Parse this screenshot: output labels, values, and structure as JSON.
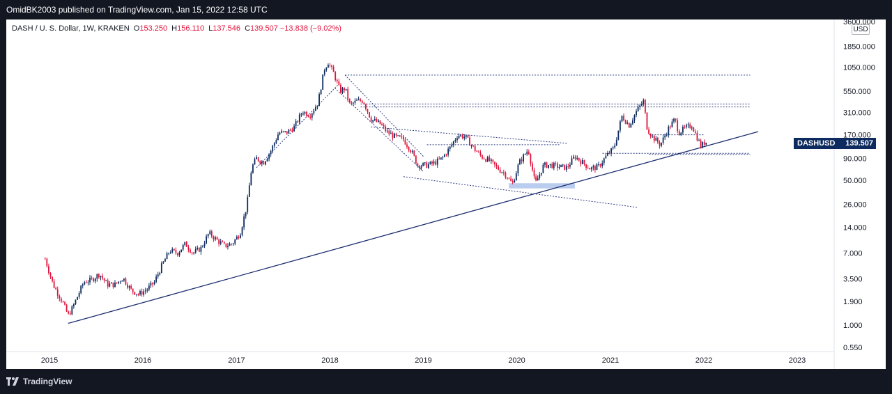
{
  "header": {
    "publisher": "OmidBK2003 published on TradingView.com, Jan 15, 2022 12:58 UTC"
  },
  "legend": {
    "symbol": "DASH / U. S. Dollar, 1W, KRAKEN",
    "o_label": "O",
    "o": "153.250",
    "h_label": "H",
    "h": "156.110",
    "l_label": "L",
    "l": "137.546",
    "c_label": "C",
    "c": "139.507",
    "change": "−13.838 (−9.02%)"
  },
  "price_tag": {
    "symbol": "DASHUSD",
    "value": "139.507"
  },
  "currency": "USD",
  "brand": "TradingView",
  "colors": {
    "up": "#0d2b5e",
    "down": "#e0143c",
    "trendline": "#1c2f6e",
    "dotted": "#2a3a80",
    "highlight": "#9cb8e8"
  },
  "chart_data": {
    "type": "candlestick",
    "y_scale": "log",
    "y_ticks": [
      "3600.000",
      "1850.000",
      "1050.000",
      "550.000",
      "310.000",
      "170.000",
      "90.000",
      "50.000",
      "26.000",
      "14.000",
      "7.000",
      "3.500",
      "1.900",
      "1.000",
      "0.550"
    ],
    "x_ticks": [
      "2015",
      "2016",
      "2017",
      "2018",
      "2019",
      "2020",
      "2021",
      "2022",
      "2023"
    ],
    "last_close": 139.507,
    "price_path": [
      [
        "2014-12-15",
        6.0
      ],
      [
        "2015-01-15",
        3.0
      ],
      [
        "2015-02-20",
        1.9
      ],
      [
        "2015-03-15",
        1.3
      ],
      [
        "2015-04-01",
        1.6
      ],
      [
        "2015-05-15",
        3.2
      ],
      [
        "2015-06-15",
        3.4
      ],
      [
        "2015-07-15",
        4.0
      ],
      [
        "2015-08-15",
        3.0
      ],
      [
        "2015-09-15",
        3.0
      ],
      [
        "2015-10-15",
        3.6
      ],
      [
        "2015-11-15",
        2.6
      ],
      [
        "2015-12-15",
        2.3
      ],
      [
        "2016-01-15",
        2.6
      ],
      [
        "2016-02-15",
        3.2
      ],
      [
        "2016-03-15",
        5.0
      ],
      [
        "2016-04-15",
        7.5
      ],
      [
        "2016-05-15",
        7.0
      ],
      [
        "2016-06-15",
        9.0
      ],
      [
        "2016-07-15",
        7.0
      ],
      [
        "2016-08-15",
        8.0
      ],
      [
        "2016-09-15",
        12.0
      ],
      [
        "2016-10-15",
        10.0
      ],
      [
        "2016-11-15",
        8.5
      ],
      [
        "2016-12-15",
        9.0
      ],
      [
        "2017-01-15",
        12.0
      ],
      [
        "2017-02-10",
        25.0
      ],
      [
        "2017-03-01",
        70.0
      ],
      [
        "2017-03-20",
        90.0
      ],
      [
        "2017-04-15",
        80.0
      ],
      [
        "2017-05-15",
        110.0
      ],
      [
        "2017-06-15",
        180.0
      ],
      [
        "2017-07-15",
        180.0
      ],
      [
        "2017-08-15",
        210.0
      ],
      [
        "2017-09-15",
        320.0
      ],
      [
        "2017-10-15",
        290.0
      ],
      [
        "2017-11-15",
        400.0
      ],
      [
        "2017-12-10",
        1000.0
      ],
      [
        "2017-12-25",
        1200.0
      ],
      [
        "2018-01-15",
        900.0
      ],
      [
        "2018-02-10",
        550.0
      ],
      [
        "2018-03-01",
        600.0
      ],
      [
        "2018-03-20",
        380.0
      ],
      [
        "2018-04-15",
        420.0
      ],
      [
        "2018-05-10",
        430.0
      ],
      [
        "2018-06-10",
        260.0
      ],
      [
        "2018-07-15",
        230.0
      ],
      [
        "2018-08-15",
        180.0
      ],
      [
        "2018-09-15",
        160.0
      ],
      [
        "2018-10-15",
        150.0
      ],
      [
        "2018-11-15",
        110.0
      ],
      [
        "2018-12-10",
        75.0
      ],
      [
        "2019-01-15",
        75.0
      ],
      [
        "2019-02-15",
        80.0
      ],
      [
        "2019-03-15",
        90.0
      ],
      [
        "2019-04-15",
        120.0
      ],
      [
        "2019-05-15",
        170.0
      ],
      [
        "2019-06-15",
        160.0
      ],
      [
        "2019-07-15",
        120.0
      ],
      [
        "2019-08-15",
        95.0
      ],
      [
        "2019-09-15",
        85.0
      ],
      [
        "2019-10-15",
        70.0
      ],
      [
        "2019-11-15",
        60.0
      ],
      [
        "2019-12-15",
        45.0
      ],
      [
        "2020-01-10",
        80.0
      ],
      [
        "2020-02-15",
        115.0
      ],
      [
        "2020-03-13",
        45.0
      ],
      [
        "2020-04-15",
        75.0
      ],
      [
        "2020-05-15",
        75.0
      ],
      [
        "2020-06-15",
        72.0
      ],
      [
        "2020-07-15",
        70.0
      ],
      [
        "2020-08-15",
        95.0
      ],
      [
        "2020-09-15",
        80.0
      ],
      [
        "2020-10-15",
        68.0
      ],
      [
        "2020-11-15",
        72.0
      ],
      [
        "2020-12-15",
        95.0
      ],
      [
        "2021-01-15",
        120.0
      ],
      [
        "2021-02-15",
        280.0
      ],
      [
        "2021-03-15",
        220.0
      ],
      [
        "2021-04-15",
        330.0
      ],
      [
        "2021-05-10",
        420.0
      ],
      [
        "2021-05-25",
        200.0
      ],
      [
        "2021-06-15",
        160.0
      ],
      [
        "2021-07-15",
        130.0
      ],
      [
        "2021-08-15",
        200.0
      ],
      [
        "2021-09-10",
        260.0
      ],
      [
        "2021-09-25",
        180.0
      ],
      [
        "2021-10-15",
        200.0
      ],
      [
        "2021-11-15",
        220.0
      ],
      [
        "2021-12-05",
        160.0
      ],
      [
        "2021-12-20",
        125.0
      ],
      [
        "2022-01-05",
        140.0
      ],
      [
        "2022-01-15",
        139.507
      ]
    ],
    "annotations": {
      "support_trendline": [
        [
          "2015-03-15",
          1.05
        ],
        [
          "2022-08-01",
          185.0
        ]
      ],
      "dotted_lines": [
        [
          [
            "2017-03-20",
            70.0
          ],
          [
            "2018-02-01",
            650.0
          ]
        ],
        [
          [
            "2018-01-20",
            600.0
          ],
          [
            "2019-01-01",
            63.0
          ]
        ],
        [
          [
            "2018-03-01",
            850.0
          ],
          [
            "2019-01-01",
            95.0
          ]
        ],
        [
          [
            "2018-06-10",
            210.0
          ],
          [
            "2020-07-15",
            135.0
          ]
        ],
        [
          [
            "2018-10-15",
            55.0
          ],
          [
            "2021-04-15",
            24.0
          ]
        ],
        [
          [
            "2018-03-01",
            850.0
          ],
          [
            "2022-07-01",
            850.0
          ]
        ],
        [
          [
            "2018-05-01",
            390.0
          ],
          [
            "2022-07-01",
            390.0
          ]
        ],
        [
          [
            "2018-05-01",
            360.0
          ],
          [
            "2022-07-01",
            360.0
          ]
        ],
        [
          [
            "2019-01-15",
            130.0
          ],
          [
            "2020-06-15",
            130.0
          ]
        ],
        [
          [
            "2020-12-01",
            103.0
          ],
          [
            "2022-07-01",
            103.0
          ]
        ],
        [
          [
            "2021-06-01",
            100.0
          ],
          [
            "2022-07-01",
            100.0
          ]
        ],
        [
          [
            "2021-06-01",
            170.0
          ],
          [
            "2022-01-01",
            170.0
          ]
        ]
      ],
      "highlight_box": [
        [
          "2019-12-01",
          46.0
        ],
        [
          "2020-08-15",
          40.0
        ]
      ]
    }
  }
}
